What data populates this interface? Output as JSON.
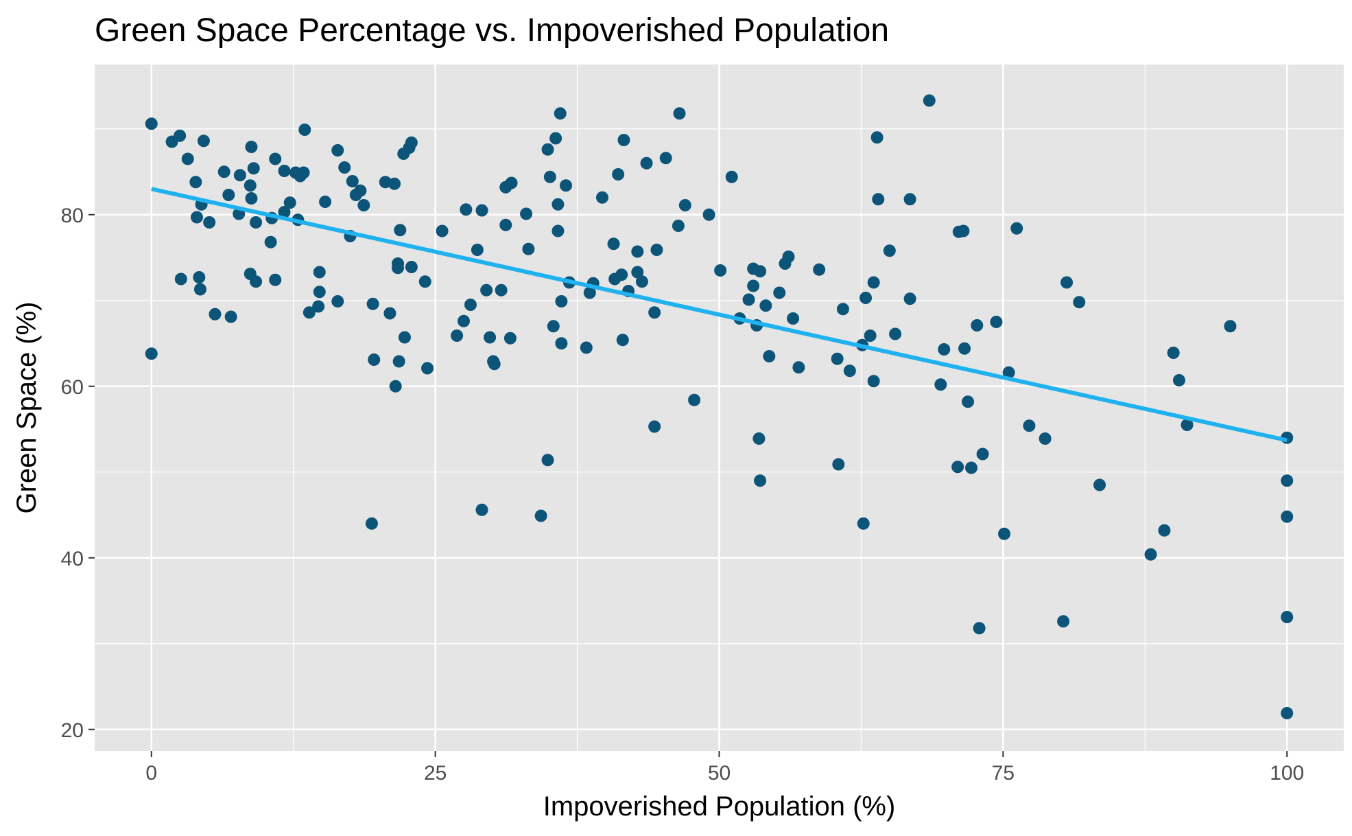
{
  "chart_data": {
    "type": "scatter",
    "title": "Green Space Percentage vs. Impoverished Population",
    "xlabel": "Impoverished Population (%)",
    "ylabel": "Green Space (%)",
    "xlim": [
      -5,
      105
    ],
    "ylim": [
      17.5,
      97.5
    ],
    "x_ticks": [
      0,
      25,
      50,
      75,
      100
    ],
    "y_ticks": [
      20,
      40,
      60,
      80
    ],
    "x_tick_labels": [
      "0",
      "25",
      "50",
      "75",
      "100"
    ],
    "y_tick_labels": [
      "20",
      "40",
      "60",
      "80"
    ],
    "grid": true,
    "legend": "none",
    "colors": {
      "panel_background": "#e5e5e5",
      "grid": "#ffffff",
      "point": "#0d5479",
      "trend_line": "#1fb2ef"
    },
    "series": [
      {
        "points": [
          [
            0,
            90.6
          ],
          [
            0,
            63.8
          ],
          [
            1.8,
            88.5
          ],
          [
            2.5,
            89.2
          ],
          [
            2.6,
            72.5
          ],
          [
            3.2,
            86.5
          ],
          [
            3.9,
            83.8
          ],
          [
            4.0,
            79.7
          ],
          [
            4.2,
            72.7
          ],
          [
            4.4,
            81.2
          ],
          [
            4.6,
            88.6
          ],
          [
            4.3,
            71.3
          ],
          [
            5.1,
            79.1
          ],
          [
            5.6,
            68.4
          ],
          [
            6.4,
            85.0
          ],
          [
            6.8,
            82.3
          ],
          [
            7.0,
            68.1
          ],
          [
            7.8,
            84.6
          ],
          [
            7.7,
            80.1
          ],
          [
            8.7,
            73.1
          ],
          [
            8.8,
            87.9
          ],
          [
            8.7,
            83.4
          ],
          [
            8.8,
            81.9
          ],
          [
            9.0,
            85.4
          ],
          [
            9.2,
            79.1
          ],
          [
            9.2,
            72.2
          ],
          [
            10.9,
            86.5
          ],
          [
            10.6,
            79.6
          ],
          [
            10.5,
            76.8
          ],
          [
            10.9,
            72.4
          ],
          [
            11.7,
            85.1
          ],
          [
            11.7,
            80.3
          ],
          [
            12.2,
            81.4
          ],
          [
            12.7,
            84.9
          ],
          [
            12.9,
            79.4
          ],
          [
            13.1,
            84.5
          ],
          [
            13.4,
            84.9
          ],
          [
            13.5,
            89.9
          ],
          [
            13.9,
            68.6
          ],
          [
            14.8,
            73.3
          ],
          [
            14.8,
            71.0
          ],
          [
            14.7,
            69.3
          ],
          [
            15.3,
            81.5
          ],
          [
            16.4,
            87.5
          ],
          [
            16.4,
            69.9
          ],
          [
            17.0,
            85.5
          ],
          [
            17.5,
            77.5
          ],
          [
            17.7,
            83.9
          ],
          [
            18.0,
            82.3
          ],
          [
            18.4,
            82.8
          ],
          [
            18.7,
            81.1
          ],
          [
            19.4,
            44.0
          ],
          [
            19.5,
            69.6
          ],
          [
            19.6,
            63.1
          ],
          [
            20.6,
            83.8
          ],
          [
            21.0,
            68.5
          ],
          [
            21.4,
            83.6
          ],
          [
            21.5,
            60.0
          ],
          [
            21.7,
            74.3
          ],
          [
            21.7,
            73.8
          ],
          [
            21.8,
            62.9
          ],
          [
            21.9,
            78.2
          ],
          [
            22.2,
            87.1
          ],
          [
            22.3,
            65.7
          ],
          [
            22.7,
            87.8
          ],
          [
            22.9,
            88.4
          ],
          [
            22.9,
            73.9
          ],
          [
            24.1,
            72.2
          ],
          [
            24.3,
            62.1
          ],
          [
            25.6,
            78.1
          ],
          [
            26.9,
            65.9
          ],
          [
            27.5,
            67.6
          ],
          [
            27.7,
            80.6
          ],
          [
            28.1,
            69.5
          ],
          [
            28.7,
            75.9
          ],
          [
            29.1,
            80.5
          ],
          [
            29.1,
            45.6
          ],
          [
            29.5,
            71.2
          ],
          [
            29.8,
            65.7
          ],
          [
            30.1,
            62.9
          ],
          [
            30.2,
            62.6
          ],
          [
            30.8,
            71.2
          ],
          [
            31.2,
            83.2
          ],
          [
            31.2,
            78.8
          ],
          [
            31.7,
            83.7
          ],
          [
            31.6,
            65.6
          ],
          [
            33.0,
            80.1
          ],
          [
            33.2,
            76.0
          ],
          [
            34.3,
            44.9
          ],
          [
            34.9,
            51.4
          ],
          [
            34.9,
            87.6
          ],
          [
            35.1,
            84.4
          ],
          [
            35.4,
            67.0
          ],
          [
            35.6,
            88.9
          ],
          [
            35.8,
            81.2
          ],
          [
            35.8,
            78.1
          ],
          [
            36.1,
            69.9
          ],
          [
            36.0,
            91.8
          ],
          [
            36.1,
            65.0
          ],
          [
            36.5,
            83.4
          ],
          [
            36.8,
            72.1
          ],
          [
            38.3,
            64.5
          ],
          [
            38.6,
            70.9
          ],
          [
            38.9,
            72.0
          ],
          [
            39.7,
            82.0
          ],
          [
            40.7,
            76.6
          ],
          [
            40.8,
            72.5
          ],
          [
            41.1,
            84.7
          ],
          [
            41.4,
            73.0
          ],
          [
            41.5,
            65.4
          ],
          [
            41.6,
            88.7
          ],
          [
            42.0,
            71.1
          ],
          [
            42.8,
            75.7
          ],
          [
            42.8,
            73.3
          ],
          [
            43.2,
            72.2
          ],
          [
            43.6,
            86.0
          ],
          [
            44.3,
            55.3
          ],
          [
            44.3,
            68.6
          ],
          [
            44.5,
            75.9
          ],
          [
            45.3,
            86.6
          ],
          [
            46.4,
            78.7
          ],
          [
            46.5,
            91.8
          ],
          [
            47.0,
            81.1
          ],
          [
            47.8,
            58.4
          ],
          [
            49.1,
            80.0
          ],
          [
            50.1,
            73.5
          ],
          [
            51.1,
            84.4
          ],
          [
            51.8,
            67.9
          ],
          [
            52.6,
            70.1
          ],
          [
            53.0,
            73.7
          ],
          [
            53.0,
            71.7
          ],
          [
            53.3,
            67.1
          ],
          [
            53.5,
            53.9
          ],
          [
            53.6,
            73.4
          ],
          [
            53.6,
            49.0
          ],
          [
            54.1,
            69.4
          ],
          [
            54.4,
            63.5
          ],
          [
            55.3,
            70.9
          ],
          [
            55.8,
            74.3
          ],
          [
            56.1,
            75.1
          ],
          [
            56.5,
            67.9
          ],
          [
            57.0,
            62.2
          ],
          [
            58.8,
            73.6
          ],
          [
            60.4,
            63.2
          ],
          [
            60.5,
            50.9
          ],
          [
            60.9,
            69.0
          ],
          [
            61.5,
            61.8
          ],
          [
            62.6,
            64.8
          ],
          [
            62.7,
            44.0
          ],
          [
            62.9,
            70.3
          ],
          [
            63.3,
            65.9
          ],
          [
            63.6,
            72.1
          ],
          [
            63.6,
            60.6
          ],
          [
            63.9,
            89.0
          ],
          [
            64.0,
            81.8
          ],
          [
            65.0,
            75.8
          ],
          [
            65.5,
            66.1
          ],
          [
            66.8,
            81.8
          ],
          [
            66.8,
            70.2
          ],
          [
            68.5,
            93.3
          ],
          [
            69.5,
            60.2
          ],
          [
            69.8,
            64.3
          ],
          [
            71.0,
            50.6
          ],
          [
            71.1,
            78.0
          ],
          [
            71.5,
            78.1
          ],
          [
            71.6,
            64.4
          ],
          [
            71.9,
            58.2
          ],
          [
            72.2,
            50.5
          ],
          [
            72.7,
            67.1
          ],
          [
            72.9,
            31.8
          ],
          [
            73.2,
            52.1
          ],
          [
            74.4,
            67.5
          ],
          [
            75.1,
            42.8
          ],
          [
            75.5,
            61.6
          ],
          [
            76.2,
            78.4
          ],
          [
            77.3,
            55.4
          ],
          [
            78.7,
            53.9
          ],
          [
            80.3,
            32.6
          ],
          [
            80.6,
            72.1
          ],
          [
            81.7,
            69.8
          ],
          [
            83.5,
            48.5
          ],
          [
            88.0,
            40.4
          ],
          [
            89.2,
            43.2
          ],
          [
            90.0,
            63.9
          ],
          [
            90.5,
            60.7
          ],
          [
            91.2,
            55.5
          ],
          [
            95.0,
            67.0
          ],
          [
            100,
            54.0
          ],
          [
            100,
            49.0
          ],
          [
            100,
            44.8
          ],
          [
            100,
            33.1
          ],
          [
            100,
            21.9
          ]
        ]
      }
    ],
    "trend_line": {
      "method": "linear",
      "x": [
        0,
        100
      ],
      "y": [
        83.0,
        53.7
      ]
    }
  }
}
